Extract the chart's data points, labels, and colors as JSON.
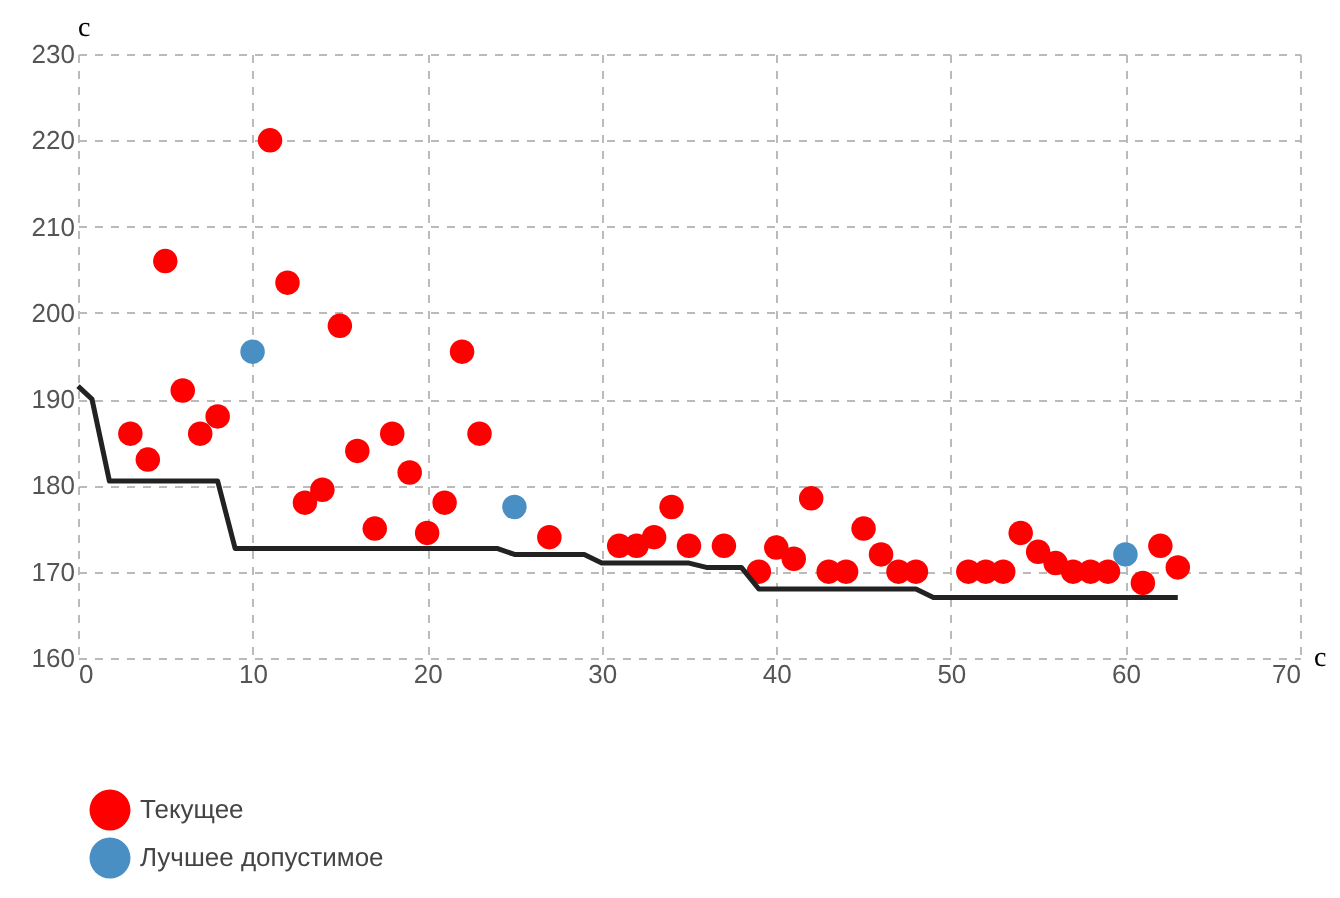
{
  "chart_data": {
    "type": "scatter",
    "xlabel": "с",
    "ylabel": "с",
    "xlim": [
      0,
      70
    ],
    "xticks": [
      0,
      10,
      20,
      30,
      40,
      50,
      60,
      70
    ],
    "ylim": [
      160,
      230
    ],
    "yticks": [
      160,
      170,
      180,
      190,
      200,
      210,
      220,
      230
    ],
    "grid": true,
    "legend": "bottom left",
    "marker": "circle",
    "series": [
      {
        "name": "Текущее",
        "color": "#ff0000",
        "x": [
          3,
          4,
          5,
          6,
          7,
          8,
          11,
          12,
          13,
          14,
          15,
          16,
          17,
          18,
          19,
          20,
          21,
          22,
          23,
          27,
          31,
          32,
          33,
          34,
          35,
          37,
          39,
          40,
          41,
          42,
          43,
          44,
          45,
          46,
          47,
          48,
          51,
          52,
          53,
          54,
          55,
          56,
          57,
          58,
          59,
          61,
          62,
          63
        ],
        "values": [
          186,
          183,
          206,
          191,
          186,
          188,
          220,
          203.5,
          178,
          179.5,
          198.5,
          184,
          175,
          186,
          181.5,
          174.5,
          178,
          195.5,
          186,
          174,
          173,
          173,
          174,
          177.5,
          173,
          173,
          170,
          172.8,
          171.5,
          178.5,
          170,
          170,
          175,
          172,
          170,
          170,
          170,
          170,
          170,
          174.5,
          172.3,
          171,
          170,
          170,
          170,
          168.7,
          173,
          170.5
        ]
      },
      {
        "name": "Лучшее допустимое",
        "color": "#4a8fc4",
        "x": [
          10,
          25,
          60
        ],
        "values": [
          195.5,
          177.5,
          172
        ]
      },
      {
        "type": "line",
        "color": "#222222",
        "line_style": "solid",
        "marker": "none",
        "x": [
          0,
          0.8,
          1.8,
          8,
          9,
          24,
          25,
          29,
          30,
          35,
          36,
          38,
          39,
          48,
          49,
          63
        ],
        "values": [
          191.5,
          190,
          180.5,
          180.5,
          172.7,
          172.7,
          172,
          172,
          171,
          171,
          170.5,
          170.5,
          168,
          168,
          167,
          167
        ]
      }
    ]
  }
}
